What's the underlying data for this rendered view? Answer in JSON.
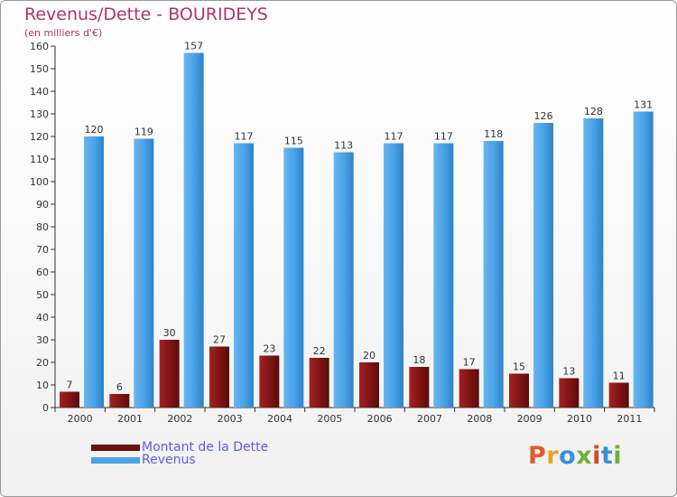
{
  "header": {
    "title": "Revenus/Dette - BOURIDEYS",
    "subtitle": "(en milliers d'€)"
  },
  "legend": {
    "items": [
      {
        "label": "Montant de la Dette",
        "color": "#8b1c1c"
      },
      {
        "label": "Revenus",
        "color": "#4aa3e8"
      }
    ]
  },
  "logo": {
    "text": "Proxiti",
    "colors": [
      "#e8592a",
      "#f0a020",
      "#3d8ed8",
      "#6ab33b",
      "#d8482a",
      "#3d8ed8",
      "#6ab33b"
    ]
  },
  "chart_data": {
    "type": "bar",
    "title": "Revenus/Dette - BOURIDEYS",
    "subtitle": "(en milliers d'€)",
    "categories": [
      "2000",
      "2001",
      "2002",
      "2003",
      "2004",
      "2005",
      "2006",
      "2007",
      "2008",
      "2009",
      "2010",
      "2011"
    ],
    "series": [
      {
        "name": "Montant de la Dette",
        "color": "#8b1c1c",
        "values": [
          7,
          6,
          30,
          27,
          23,
          22,
          20,
          18,
          17,
          15,
          13,
          11
        ]
      },
      {
        "name": "Revenus",
        "color": "#4aa3e8",
        "values": [
          120,
          119,
          157,
          117,
          115,
          113,
          117,
          117,
          118,
          126,
          128,
          131
        ]
      }
    ],
    "ylim": [
      0,
      160
    ],
    "yticks": [
      0,
      10,
      20,
      30,
      40,
      50,
      60,
      70,
      80,
      90,
      100,
      110,
      120,
      130,
      140,
      150,
      160
    ],
    "grid": false,
    "legend_position": "bottom-left"
  }
}
